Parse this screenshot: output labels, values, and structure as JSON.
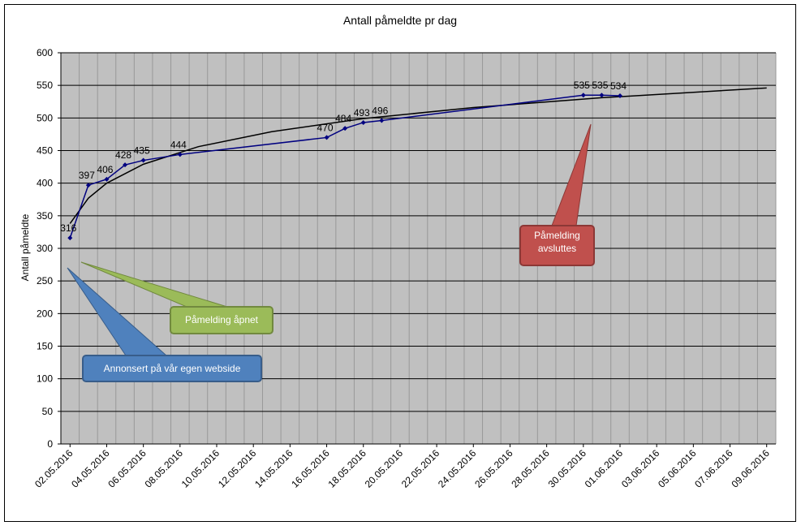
{
  "chart_data": {
    "type": "line",
    "title": "Antall påmeldte pr dag",
    "y_label": "Antall påmeldte",
    "x": [
      "02.05.2016",
      "03.05.2016",
      "04.05.2016",
      "05.05.2016",
      "06.05.2016",
      "08.05.2016",
      "16.05.2016",
      "17.05.2016",
      "18.05.2016",
      "19.05.2016",
      "30.05.2016",
      "31.05.2016",
      "01.06.2016"
    ],
    "series": [
      {
        "color": "#000080",
        "values": [
          316,
          397,
          406,
          428,
          435,
          444,
          470,
          484,
          493,
          496,
          535,
          535,
          534
        ]
      }
    ],
    "trendline": {
      "color": "#000000",
      "x": [
        "02.05.2016",
        "03.05.2016",
        "04.05.2016",
        "06.05.2016",
        "09.05.2016",
        "13.05.2016",
        "18.05.2016",
        "24.05.2016",
        "31.05.2016",
        "09.06.2016"
      ],
      "values": [
        338,
        377,
        400,
        429,
        456,
        479,
        499,
        516,
        531,
        546
      ]
    },
    "xlim": [
      "02.05.2016",
      "09.06.2016"
    ],
    "xticks": [
      "02.05.2016",
      "04.05.2016",
      "06.05.2016",
      "08.05.2016",
      "10.05.2016",
      "12.05.2016",
      "14.05.2016",
      "16.05.2016",
      "18.05.2016",
      "20.05.2016",
      "22.05.2016",
      "24.05.2016",
      "26.05.2016",
      "28.05.2016",
      "30.05.2016",
      "01.06.2016",
      "03.06.2016",
      "05.06.2016",
      "07.06.2016",
      "09.06.2016"
    ],
    "ylim": [
      0,
      600
    ],
    "yticks": [
      0,
      50,
      100,
      150,
      200,
      250,
      300,
      350,
      400,
      450,
      500,
      550,
      600
    ],
    "grid": true,
    "annotations": [
      "Påmelding åpnet",
      "Annonsert på vår egen webside",
      "Påmelding avsluttes"
    ]
  }
}
